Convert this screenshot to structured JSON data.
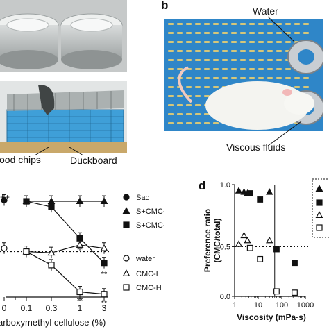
{
  "panel_labels": {
    "b": "b",
    "d": "d"
  },
  "photo_a_labels": {
    "wood_chips": "ood chips",
    "duckboard": "Duckboard"
  },
  "photo_b_labels": {
    "water": "Water",
    "viscous": "Viscous fluids"
  },
  "colors": {
    "cage_blue": "#3f9fd8",
    "board_yellow": "#c8c074",
    "panel_bg": "#ffffff"
  },
  "chart_data": [
    {
      "type": "line",
      "xlabel": "arboxymethyl cellulose (%)",
      "x_ticks": [
        "0",
        "0.1",
        "0.3",
        "1",
        "3"
      ],
      "top_mark": "++",
      "significance": [
        "**",
        "**",
        "**",
        "**"
      ],
      "legend": [
        "Sac",
        "S+CMC-L",
        "S+CMC-H",
        "water",
        "CMC-L",
        "CMC-H"
      ],
      "series": [
        {
          "name": "Sac",
          "marker": "filled-circle",
          "x": [
            "0"
          ],
          "y": [
            0.96
          ]
        },
        {
          "name": "S+CMC-L",
          "marker": "filled-triangle",
          "x": [
            "0.1",
            "0.3",
            "1",
            "3"
          ],
          "y": [
            0.95,
            0.95,
            0.95,
            0.95
          ]
        },
        {
          "name": "S+CMC-H",
          "marker": "filled-square",
          "x": [
            "0.1",
            "0.3",
            "1",
            "3"
          ],
          "y": [
            0.95,
            0.9,
            0.62,
            0.4
          ]
        },
        {
          "name": "water",
          "marker": "open-circle",
          "x": [
            "0"
          ],
          "y": [
            0.53
          ]
        },
        {
          "name": "CMC-L",
          "marker": "open-triangle",
          "x": [
            "0.1",
            "0.3",
            "1",
            "3"
          ],
          "y": [
            0.5,
            0.49,
            0.56,
            0.53
          ]
        },
        {
          "name": "CMC-H",
          "marker": "open-square",
          "x": [
            "0.1",
            "0.3",
            "1",
            "3"
          ],
          "y": [
            0.5,
            0.38,
            0.14,
            0.12
          ]
        }
      ],
      "reference_line": 0.5
    },
    {
      "type": "scatter",
      "xlabel": "Viscosity (mPa·s)",
      "ylabel": "Preference ratio (CMC/total)",
      "x_ticks": [
        "1",
        "10",
        "100",
        "1000"
      ],
      "y_ticks": [
        "0.0",
        "0.5",
        "1.0"
      ],
      "xlim": [
        1,
        1000
      ],
      "ylim": [
        0.1,
        1.0
      ],
      "x_scale": "log",
      "reference_line": 0.5,
      "vertical_line_x": 50,
      "series": [
        {
          "marker": "filled-triangle",
          "x": [
            1.5,
            2.5,
            3.5,
            30
          ],
          "y": [
            0.95,
            0.94,
            0.93,
            0.94
          ]
        },
        {
          "marker": "filled-square",
          "x": [
            4.5,
            12,
            60,
            350
          ],
          "y": [
            0.93,
            0.88,
            0.48,
            0.37
          ]
        },
        {
          "marker": "open-triangle",
          "x": [
            1.5,
            2.5,
            3.5,
            30
          ],
          "y": [
            0.52,
            0.59,
            0.55,
            0.55
          ]
        },
        {
          "marker": "open-square",
          "x": [
            4.5,
            12,
            60,
            350
          ],
          "y": [
            0.49,
            0.4,
            0.14,
            0.13
          ]
        }
      ]
    }
  ]
}
